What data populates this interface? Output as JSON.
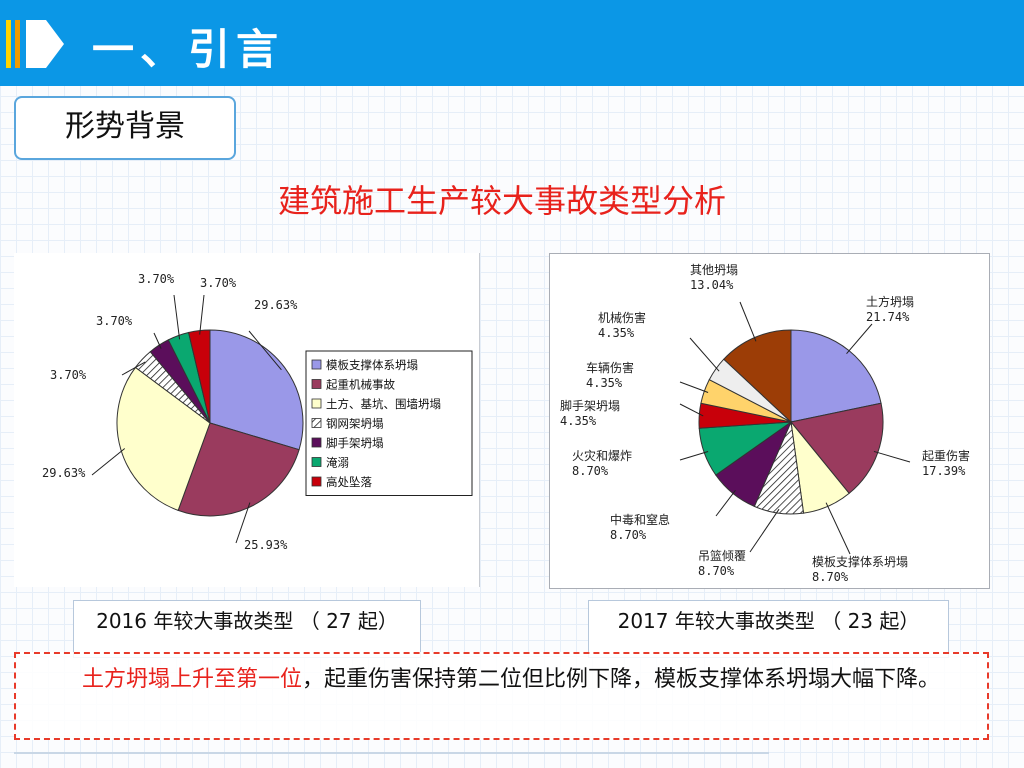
{
  "header": {
    "title": "一、引言"
  },
  "section_box": {
    "label": "形势背景"
  },
  "main_title": "建筑施工生产较大事故类型分析",
  "chart_data": [
    {
      "type": "pie",
      "caption": "2016 年较大事故类型 （ 27 起）",
      "legend_position": "right",
      "categories": [
        "模板支撑体系坍塌",
        "起重机械事故",
        "土方、基坑、围墙坍塌",
        "钢网架坍塌",
        "脚手架坍塌",
        "淹溺",
        "高处坠落"
      ],
      "values": [
        29.63,
        25.93,
        29.63,
        3.7,
        3.7,
        3.7,
        3.7
      ],
      "value_labels": [
        "29.63%",
        "25.93%",
        "29.63%",
        "3.70%",
        "3.70%",
        "3.70%",
        "3.70%"
      ],
      "colors": [
        "#9a98e8",
        "#9a3b5e",
        "#ffffcc",
        "hatch",
        "#5b0e5b",
        "#0aa870",
        "#c8000a"
      ]
    },
    {
      "type": "pie",
      "caption": "2017 年较大事故类型 （ 23 起）",
      "legend_position": "none",
      "categories": [
        "土方坍塌",
        "起重伤害",
        "模板支撑体系坍塌",
        "吊篮倾覆",
        "中毒和窒息",
        "火灾和爆炸",
        "脚手架坍塌",
        "车辆伤害",
        "机械伤害",
        "其他坍塌"
      ],
      "values": [
        21.74,
        17.39,
        8.7,
        8.7,
        8.7,
        8.7,
        4.35,
        4.35,
        4.35,
        13.04
      ],
      "value_labels": [
        "21.74%",
        "17.39%",
        "8.70%",
        "8.70%",
        "8.70%",
        "8.70%",
        "4.35%",
        "4.35%",
        "4.35%",
        "13.04%"
      ],
      "colors": [
        "#9a98e8",
        "#9a3b5e",
        "#ffffcc",
        "hatch",
        "#5b0e5b",
        "#0aa870",
        "#c8000a",
        "#ffd36b",
        "#eeeeee",
        "#9c3d06"
      ]
    }
  ],
  "note": {
    "highlight": "土方坍塌上升至第一位",
    "rest": "，起重伤害保持第二位但比例下降，模板支撑体系坍塌大幅下降。"
  }
}
